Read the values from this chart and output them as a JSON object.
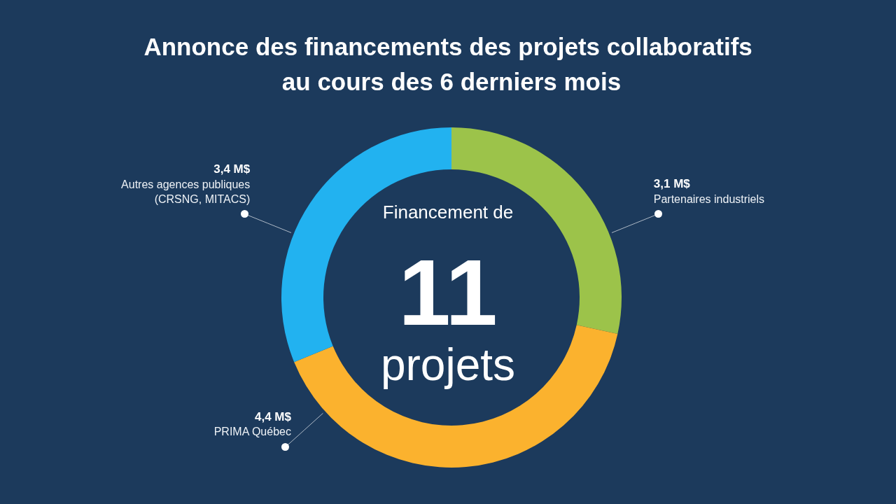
{
  "chart_data": {
    "type": "donut",
    "title": "Annonce des financements des projets collaboratifs au cours des 6 derniers mois",
    "categories": [
      "Partenaires industriels",
      "PRIMA Québec",
      "Autres agences publiques (CRSNG, MITACS)"
    ],
    "values": [
      3.1,
      4.4,
      3.4
    ],
    "colors": [
      "#9cc34a",
      "#fbb22e",
      "#22b2f0"
    ],
    "value_labels": [
      "3,1 M$",
      "4,4 M$",
      "3,4 M$"
    ],
    "annotations": [
      "Financement de",
      "11",
      "projets"
    ]
  }
}
